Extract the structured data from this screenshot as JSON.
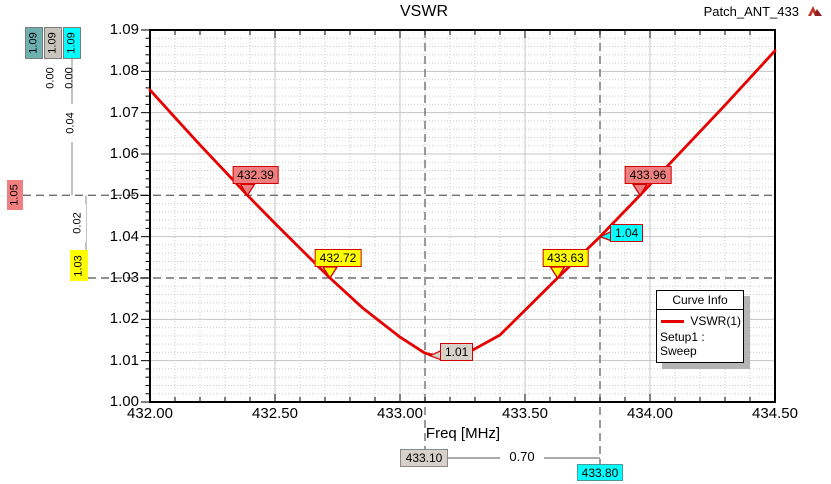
{
  "window": {
    "title": "VSWR",
    "project_name": "Patch_ANT_433",
    "logo": "ansoft-logo"
  },
  "chart_data": {
    "type": "line",
    "title": "VSWR",
    "xlabel": "Freq [MHz]",
    "ylabel": "",
    "xlim": [
      432.0,
      434.5
    ],
    "ylim": [
      1.0,
      1.09
    ],
    "grid": true,
    "x_major_ticks": [
      432.0,
      432.5,
      433.0,
      433.5,
      434.0,
      434.5
    ],
    "x_tick_labels": [
      "432.00",
      "432.50",
      "433.00",
      "433.50",
      "434.00",
      "434.50"
    ],
    "x_minor_step": 0.1,
    "y_major_step": 0.01,
    "y_tick_labels": [
      "1.00",
      "1.01",
      "1.02",
      "1.03",
      "1.04",
      "1.05",
      "1.06",
      "1.07",
      "1.08",
      "1.09"
    ],
    "y_minor_step": 0.002,
    "legend_position": "right-inside",
    "series": [
      {
        "name": "VSWR(1)",
        "color": "#e60000",
        "x": [
          432.0,
          432.1,
          432.2,
          432.3,
          432.39,
          432.5,
          432.6,
          432.72,
          432.85,
          433.0,
          433.1,
          433.17,
          433.25,
          433.4,
          433.5,
          433.63,
          433.8,
          433.96,
          434.1,
          434.3,
          434.5
        ],
        "y": [
          1.0755,
          1.0688,
          1.0622,
          1.0558,
          1.05,
          1.0432,
          1.0372,
          1.03,
          1.0228,
          1.0157,
          1.0118,
          1.0108,
          1.0112,
          1.0162,
          1.0222,
          1.03,
          1.04,
          1.05,
          1.059,
          1.0718,
          1.085
        ]
      }
    ],
    "markers": [
      {
        "label": "432.39",
        "x": 432.39,
        "y": 1.05,
        "fill": "#f08080",
        "pointer": "down"
      },
      {
        "label": "432.72",
        "x": 432.72,
        "y": 1.03,
        "fill": "#ffff00",
        "pointer": "down"
      },
      {
        "label": "433.63",
        "x": 433.63,
        "y": 1.03,
        "fill": "#ffff00",
        "pointer": "down"
      },
      {
        "label": "433.96",
        "x": 433.96,
        "y": 1.05,
        "fill": "#f08080",
        "pointer": "down"
      },
      {
        "label": "1.04",
        "x": 433.8,
        "y": 1.04,
        "fill": "#00ffff",
        "pointer": "left"
      },
      {
        "label": "1.01",
        "x": 433.12,
        "y": 1.0112,
        "fill": "#d6d2ca",
        "pointer": "left"
      }
    ],
    "marker_lines": {
      "horizontal": [
        1.05,
        1.03
      ],
      "vertical": [
        433.1,
        433.8
      ]
    }
  },
  "legend": {
    "title": "Curve Info",
    "series_label": "VSWR(1)",
    "sweep_label": "Setup1 : Sweep"
  },
  "left_rulers": {
    "clipped_boxes": [
      {
        "label": "1.09",
        "fill": "#6cb0b0"
      },
      {
        "label": "1.09",
        "fill": "#c8c5bd"
      },
      {
        "label": "1.09",
        "fill": "#00ffff"
      }
    ],
    "deltas": [
      "0.00",
      "0.00"
    ],
    "segment_deltas": [
      "0.04",
      "0.02"
    ],
    "level_boxes": [
      {
        "label": "1.05",
        "value": 1.05,
        "fill": "#f08080"
      },
      {
        "label": "1.03",
        "value": 1.03,
        "fill": "#ffff00"
      }
    ]
  },
  "bottom_ruler": {
    "from_label": "433.10",
    "from_fill": "#d6d2ca",
    "delta_label": "0.70",
    "to_label": "433.80",
    "to_fill": "#00ffff"
  },
  "colors": {
    "curve": "#e60000",
    "marker_border": "#d40000",
    "dashed_marker_line": "#6f6f6f",
    "grid_major": "#c5c5c5",
    "grid_minor": "#c8d1c8",
    "axis": "#000000",
    "legend_shadow": "#b4b4b4"
  }
}
